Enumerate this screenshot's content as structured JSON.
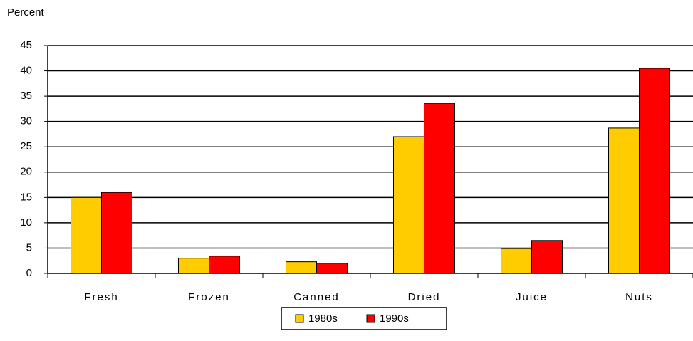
{
  "chart_data": {
    "type": "bar",
    "y_label": "Percent",
    "categories": [
      "Fresh",
      "Frozen",
      "Canned",
      "Dried",
      "Juice",
      "Nuts"
    ],
    "series": [
      {
        "name": "1980s",
        "color": "#ffcc00",
        "values": [
          15,
          3,
          2.3,
          27,
          4.9,
          28.7
        ]
      },
      {
        "name": "1990s",
        "color": "#ff0000",
        "values": [
          16,
          3.4,
          2,
          33.6,
          6.5,
          40.5
        ]
      }
    ],
    "ylim": [
      0,
      45
    ],
    "yticks": [
      0,
      5,
      10,
      15,
      20,
      25,
      30,
      35,
      40,
      45
    ],
    "grid": true,
    "legend": "bottom"
  }
}
